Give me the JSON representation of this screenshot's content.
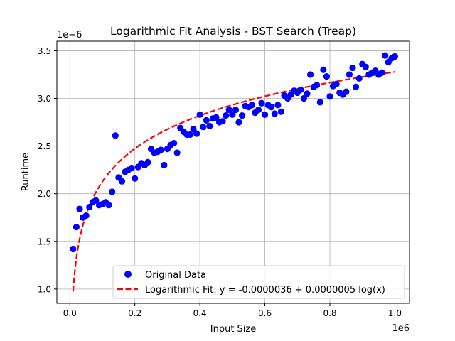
{
  "chart_data": {
    "type": "scatter",
    "title": "Logarithmic Fit Analysis - BST Search (Treap)",
    "xlabel": "Input Size",
    "ylabel": "Runtime",
    "x_offset_label": "1e6",
    "y_offset_label": "1e−6",
    "x_scale": 1000000,
    "y_scale": 1e-06,
    "xlim": [
      -40000,
      1045000
    ],
    "ylim": [
      0.85,
      3.6
    ],
    "x_ticks": [
      0.0,
      0.2,
      0.4,
      0.6,
      0.8,
      1.0
    ],
    "x_tick_labels": [
      "0.0",
      "0.2",
      "0.4",
      "0.6",
      "0.8",
      "1.0"
    ],
    "y_ticks": [
      1.0,
      1.5,
      2.0,
      2.5,
      3.0,
      3.5
    ],
    "y_tick_labels": [
      "1.0",
      "1.5",
      "2.0",
      "2.5",
      "3.0",
      "3.5"
    ],
    "grid": true,
    "legend_position": "lower-right",
    "colors": {
      "data": "#0000ff",
      "fit": "#ff0000"
    },
    "series": [
      {
        "name": "Original Data",
        "kind": "scatter",
        "x": [
          10000,
          20000,
          30000,
          40000,
          50000,
          60000,
          70000,
          80000,
          90000,
          100000,
          110000,
          120000,
          130000,
          140000,
          150000,
          160000,
          170000,
          180000,
          190000,
          200000,
          210000,
          220000,
          230000,
          240000,
          250000,
          260000,
          270000,
          280000,
          290000,
          300000,
          310000,
          320000,
          330000,
          340000,
          350000,
          360000,
          370000,
          380000,
          390000,
          400000,
          410000,
          420000,
          430000,
          440000,
          450000,
          460000,
          470000,
          480000,
          490000,
          500000,
          510000,
          520000,
          530000,
          540000,
          550000,
          560000,
          570000,
          580000,
          590000,
          600000,
          610000,
          620000,
          630000,
          640000,
          650000,
          660000,
          670000,
          680000,
          690000,
          700000,
          710000,
          720000,
          730000,
          740000,
          750000,
          760000,
          770000,
          780000,
          790000,
          800000,
          810000,
          820000,
          830000,
          840000,
          850000,
          860000,
          870000,
          880000,
          890000,
          900000,
          910000,
          920000,
          930000,
          940000,
          950000,
          960000,
          970000,
          980000,
          990000,
          1000000
        ],
        "y": [
          1.42,
          1.65,
          1.84,
          1.75,
          1.77,
          1.86,
          1.91,
          1.93,
          1.88,
          1.89,
          1.91,
          1.88,
          2.02,
          2.61,
          2.17,
          2.13,
          2.23,
          2.25,
          2.27,
          2.16,
          2.28,
          2.32,
          2.3,
          2.33,
          2.47,
          2.43,
          2.44,
          2.46,
          2.3,
          2.47,
          2.51,
          2.53,
          2.43,
          2.69,
          2.65,
          2.62,
          2.62,
          2.68,
          2.63,
          2.83,
          2.7,
          2.77,
          2.71,
          2.79,
          2.8,
          2.75,
          2.76,
          2.82,
          2.88,
          2.83,
          2.88,
          2.75,
          2.82,
          2.92,
          2.91,
          2.93,
          2.85,
          2.88,
          2.95,
          2.83,
          2.93,
          2.91,
          2.84,
          2.93,
          2.86,
          3.03,
          3.0,
          3.04,
          3.08,
          3.06,
          3.09,
          3.0,
          3.05,
          3.25,
          3.12,
          3.14,
          2.96,
          3.3,
          3.23,
          3.02,
          3.13,
          3.15,
          3.06,
          3.04,
          3.07,
          3.25,
          3.32,
          3.12,
          3.21,
          3.36,
          3.33,
          3.25,
          3.27,
          3.29,
          3.25,
          3.27,
          3.45,
          3.38,
          3.42,
          3.44
        ]
      },
      {
        "name": "Logarithmic Fit: y = -0.0000036 + 0.0000005 log(x)",
        "kind": "line",
        "style": "dashed",
        "equation": {
          "a": -3.63,
          "b": 0.5,
          "base": "e"
        }
      }
    ]
  }
}
